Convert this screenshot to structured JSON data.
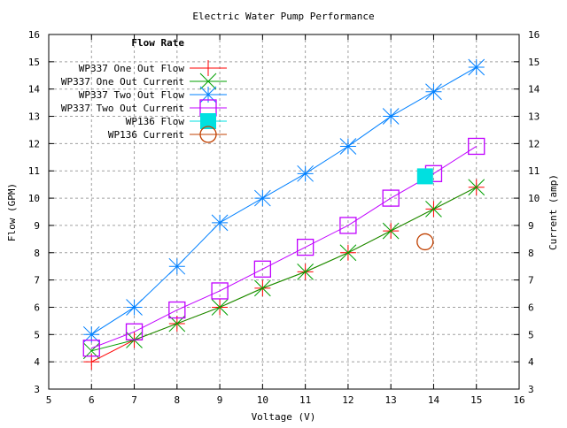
{
  "chart_data": {
    "type": "line",
    "title": "Electric Water Pump Performance",
    "xlabel": "Voltage (V)",
    "ylabel": "Flow (GPM)",
    "y2label": "Current (amp)",
    "xlim": [
      5,
      16
    ],
    "ylim": [
      3,
      16
    ],
    "y2lim": [
      3,
      16
    ],
    "xticks": [
      "5",
      "6",
      "7",
      "8",
      "9",
      "10",
      "11",
      "12",
      "13",
      "14",
      "15",
      "16"
    ],
    "yticks": [
      "3",
      "4",
      "5",
      "6",
      "7",
      "8",
      "9",
      "10",
      "11",
      "12",
      "13",
      "14",
      "15",
      "16"
    ],
    "grid": true,
    "legend": {
      "title": "Flow Rate",
      "placement": "top-left"
    },
    "series": [
      {
        "name": "WP337 One Out Flow",
        "color": "#ff0000",
        "marker": "plus",
        "axis": "y1",
        "x": [
          6,
          7,
          8,
          9,
          10,
          11,
          12,
          13,
          14,
          15
        ],
        "y": [
          4.0,
          4.8,
          5.4,
          6.0,
          6.7,
          7.3,
          8.0,
          8.8,
          9.6,
          10.4
        ]
      },
      {
        "name": "WP337 One Out Current",
        "color": "#00a000",
        "marker": "cross",
        "axis": "y2",
        "x": [
          6,
          7,
          8,
          9,
          10,
          11,
          12,
          13,
          14,
          15
        ],
        "y": [
          4.4,
          4.8,
          5.4,
          6.0,
          6.7,
          7.3,
          8.0,
          8.8,
          9.6,
          10.4
        ]
      },
      {
        "name": "WP337 Two Out Flow",
        "color": "#0080ff",
        "marker": "star",
        "axis": "y1",
        "x": [
          6,
          7,
          8,
          9,
          10,
          11,
          12,
          13,
          14,
          15
        ],
        "y": [
          5.0,
          6.0,
          7.5,
          9.1,
          10.0,
          10.9,
          11.9,
          13.0,
          13.9,
          14.8
        ]
      },
      {
        "name": "WP337 Two Out Current",
        "color": "#c000ff",
        "marker": "square",
        "axis": "y2",
        "x": [
          6,
          7,
          8,
          9,
          10,
          11,
          12,
          13,
          14,
          15
        ],
        "y": [
          4.5,
          5.1,
          5.9,
          6.6,
          7.4,
          8.2,
          9.0,
          10.0,
          10.9,
          11.9
        ]
      },
      {
        "name": "WP136 Flow",
        "color": "#00e0e0",
        "marker": "filled-square",
        "axis": "y1",
        "x": [
          13.8
        ],
        "y": [
          10.8
        ]
      },
      {
        "name": "WP136 Current",
        "color": "#c04000",
        "marker": "circle",
        "axis": "y2",
        "x": [
          13.8
        ],
        "y": [
          8.4
        ]
      }
    ]
  }
}
